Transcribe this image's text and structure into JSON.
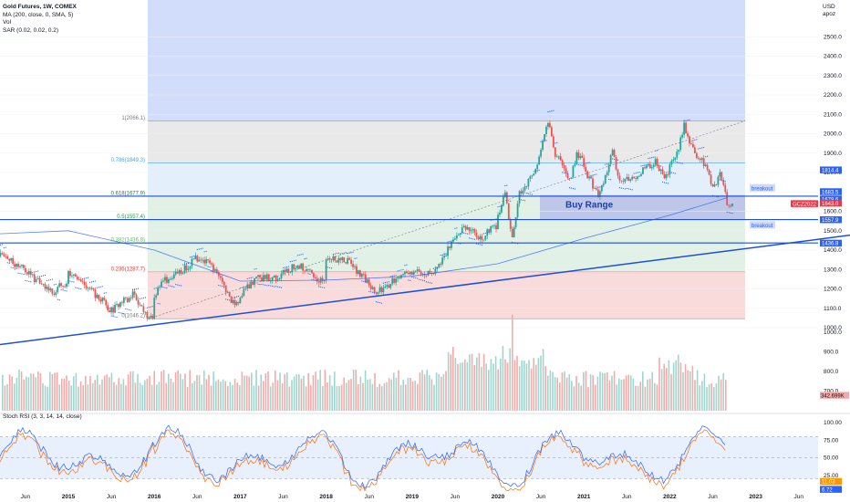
{
  "header": {
    "symbol": "Gold Futures, 1W, COMEX",
    "ma": "MA (200, close, 0, SMA, 5)",
    "vol": "Vol",
    "sar": "SAR (0.02, 0.02, 0.2)",
    "currency": "USD",
    "sub": "apoz"
  },
  "stoch_label": "Stoch RSI (3, 3, 14, 14, close)",
  "colors": {
    "up": "#26a69a",
    "down": "#ef5350",
    "ma": "#2962ff",
    "trend": "#1e50d6",
    "fib_top": "#d2dcfb",
    "fib_grey": "#e9e9ea",
    "fib_blue": "#e3effb",
    "fib_green": "#e2f1e6",
    "fib_red": "#fadbdb",
    "buy_range": "#b7bfe6",
    "sar": "#2962ff",
    "stoch_k": "#2962ff",
    "stoch_d": "#ff6d00"
  },
  "chart_data": {
    "type": "candlestick",
    "title": "Gold Futures, 1W, COMEX",
    "x_axis_labels": [
      "Jun",
      "2015",
      "Jun",
      "2016",
      "Jun",
      "2017",
      "Jun",
      "2018",
      "Jun",
      "2019",
      "Jun",
      "2020",
      "Jun",
      "2021",
      "Jun",
      "2022",
      "Jun",
      "2023",
      "Jun"
    ],
    "price_axis": {
      "range": [
        1000,
        2700
      ],
      "ticks": [
        1000,
        1100,
        1200,
        1300,
        1400,
        1500,
        1600,
        1700,
        1800,
        1900,
        2000,
        2100,
        2200,
        2300,
        2400,
        2500
      ]
    },
    "fib_levels": [
      {
        "label": "1(2066.1)",
        "value": 2066.1
      },
      {
        "label": "0.786(1849.3)",
        "value": 1849.3
      },
      {
        "label": "0.618(1677.9)",
        "value": 1677.9
      },
      {
        "label": "0.5(1557.4)",
        "value": 1557.4
      },
      {
        "label": "0.382(1436.8)",
        "value": 1436.8
      },
      {
        "label": "0.236(1287.7)",
        "value": 1287.7
      },
      {
        "label": "0(1046.2)",
        "value": 1046.2
      }
    ],
    "price_tags": [
      {
        "label": "1814.4",
        "value": 1814.4
      },
      {
        "label": "1683.5",
        "value": 1683.5
      },
      {
        "label": "1678.6",
        "value": 1678.6
      },
      {
        "label": "GCZ2022",
        "value": 1643.0
      },
      {
        "label": "1643.0",
        "value": 1643.0
      },
      {
        "label": "1557.9",
        "value": 1557.9
      },
      {
        "label": "1436.8",
        "value": 1436.8
      }
    ],
    "annotations": [
      "Buy Range",
      "breakout",
      "breakout"
    ],
    "horizontal_lines": [
      1677.9,
      1557.4,
      1436.8
    ],
    "trendline": {
      "start": [
        "2014-01",
        960
      ],
      "end": [
        "2023-08",
        1458
      ]
    },
    "ma200_anchor": [
      [
        "2014-01",
        1480
      ],
      [
        "2015-01",
        1500
      ],
      [
        "2016-01",
        1400
      ],
      [
        "2017-01",
        1240
      ],
      [
        "2018-01",
        1245
      ],
      [
        "2019-01",
        1265
      ],
      [
        "2020-01",
        1330
      ],
      [
        "2021-01",
        1460
      ],
      [
        "2022-01",
        1580
      ],
      [
        "2022-09",
        1670
      ]
    ],
    "price_path": [
      [
        "2014-01",
        1340
      ],
      [
        "2014-03",
        1380
      ],
      [
        "2014-06",
        1320
      ],
      [
        "2014-09",
        1230
      ],
      [
        "2014-11",
        1170
      ],
      [
        "2015-01",
        1280
      ],
      [
        "2015-04",
        1200
      ],
      [
        "2015-07",
        1090
      ],
      [
        "2015-10",
        1170
      ],
      [
        "2015-12",
        1060
      ],
      [
        "2016-02",
        1240
      ],
      [
        "2016-04",
        1270
      ],
      [
        "2016-07",
        1360
      ],
      [
        "2016-09",
        1320
      ],
      [
        "2016-12",
        1130
      ],
      [
        "2017-03",
        1250
      ],
      [
        "2017-06",
        1260
      ],
      [
        "2017-09",
        1330
      ],
      [
        "2017-12",
        1250
      ],
      [
        "2018-01",
        1360
      ],
      [
        "2018-04",
        1340
      ],
      [
        "2018-06",
        1270
      ],
      [
        "2018-08",
        1180
      ],
      [
        "2018-10",
        1230
      ],
      [
        "2019-01",
        1290
      ],
      [
        "2019-04",
        1280
      ],
      [
        "2019-06",
        1400
      ],
      [
        "2019-08",
        1520
      ],
      [
        "2019-11",
        1460
      ],
      [
        "2020-01",
        1580
      ],
      [
        "2020-02",
        1680
      ],
      [
        "2020-03",
        1470
      ],
      [
        "2020-04",
        1700
      ],
      [
        "2020-06",
        1780
      ],
      [
        "2020-08",
        2070
      ],
      [
        "2020-09",
        1900
      ],
      [
        "2020-11",
        1760
      ],
      [
        "2020-12",
        1890
      ],
      [
        "2021-03",
        1680
      ],
      [
        "2021-05",
        1900
      ],
      [
        "2021-06",
        1760
      ],
      [
        "2021-08",
        1770
      ],
      [
        "2021-11",
        1860
      ],
      [
        "2021-12",
        1780
      ],
      [
        "2022-02",
        1900
      ],
      [
        "2022-03",
        2040
      ],
      [
        "2022-04",
        1930
      ],
      [
        "2022-06",
        1830
      ],
      [
        "2022-07",
        1710
      ],
      [
        "2022-08",
        1800
      ],
      [
        "2022-09",
        1643
      ]
    ],
    "volume_range": [
      600,
      1100
    ],
    "volume_ticks": [
      700,
      800,
      900,
      1000
    ],
    "volume_last_label": "342.699K",
    "stoch_rsi": {
      "range": [
        0,
        100
      ],
      "ticks": [
        25,
        50,
        75,
        100
      ],
      "bands": [
        20,
        80
      ],
      "last_values": [
        "11.03",
        "6.72"
      ]
    }
  }
}
